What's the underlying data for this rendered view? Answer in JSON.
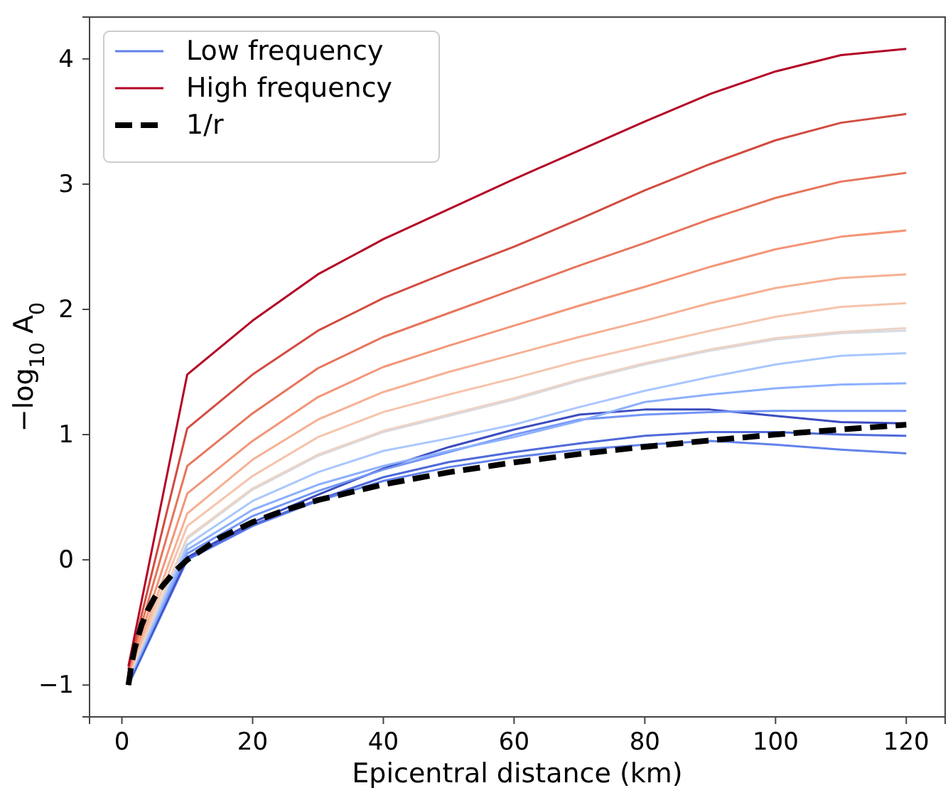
{
  "chart_data": {
    "type": "line",
    "xlabel": "Epicentral distance (km)",
    "ylabel": "−log$_{10}$ A$_{0}$",
    "x": [
      1,
      10,
      20,
      30,
      40,
      50,
      60,
      70,
      80,
      90,
      100,
      110,
      120
    ],
    "xlim": [
      -4.95,
      125.95
    ],
    "ylim": [
      -1.254,
      4.334
    ],
    "xticks": [
      0,
      20,
      40,
      60,
      80,
      100,
      120
    ],
    "yticks": [
      {
        "value": -1,
        "label": "−1"
      },
      0,
      1,
      2,
      3,
      4
    ],
    "grid": false,
    "legend": "top left",
    "line_style": "solid",
    "marker": "none",
    "series": [
      {
        "name": "Low frequency",
        "color": "#6282ea",
        "values": [
          -1.0,
          0.0,
          0.27,
          0.47,
          0.63,
          0.74,
          0.82,
          0.88,
          0.92,
          0.95,
          0.92,
          0.88,
          0.85
        ]
      },
      {
        "color": "#4f69d9",
        "values": [
          -0.99,
          0.01,
          0.28,
          0.48,
          0.66,
          0.78,
          0.86,
          0.93,
          0.99,
          1.02,
          1.02,
          1.0,
          0.99
        ]
      },
      {
        "color": "#3b4cc0",
        "values": [
          -0.98,
          0.02,
          0.3,
          0.52,
          0.73,
          0.9,
          1.04,
          1.16,
          1.2,
          1.2,
          1.15,
          1.1,
          1.09
        ]
      },
      {
        "color": "#7396f5",
        "values": [
          -0.97,
          0.05,
          0.35,
          0.55,
          0.72,
          0.86,
          1.0,
          1.12,
          1.16,
          1.18,
          1.19,
          1.19,
          1.19
        ]
      },
      {
        "color": "#8db0fe",
        "values": [
          -0.96,
          0.08,
          0.4,
          0.6,
          0.75,
          0.87,
          0.98,
          1.11,
          1.26,
          1.32,
          1.37,
          1.4,
          1.41
        ]
      },
      {
        "color": "#aac7fd",
        "values": [
          -0.95,
          0.12,
          0.47,
          0.7,
          0.87,
          0.97,
          1.08,
          1.22,
          1.35,
          1.46,
          1.56,
          1.63,
          1.65
        ]
      },
      {
        "color": "#d5dbe5",
        "values": [
          -0.94,
          0.17,
          0.56,
          0.83,
          1.02,
          1.15,
          1.28,
          1.43,
          1.56,
          1.67,
          1.76,
          1.81,
          1.83
        ]
      },
      {
        "color": "#ecd3c5",
        "values": [
          -0.93,
          0.18,
          0.57,
          0.84,
          1.03,
          1.16,
          1.29,
          1.44,
          1.57,
          1.68,
          1.77,
          1.82,
          1.85
        ]
      },
      {
        "color": "#f5c4ac",
        "values": [
          -0.92,
          0.27,
          0.67,
          0.98,
          1.18,
          1.32,
          1.45,
          1.59,
          1.71,
          1.83,
          1.94,
          2.02,
          2.05
        ]
      },
      {
        "color": "#f7b093",
        "values": [
          -0.91,
          0.37,
          0.8,
          1.12,
          1.34,
          1.5,
          1.64,
          1.78,
          1.91,
          2.05,
          2.17,
          2.25,
          2.28
        ]
      },
      {
        "color": "#f39577",
        "values": [
          -0.9,
          0.53,
          0.95,
          1.3,
          1.54,
          1.71,
          1.87,
          2.03,
          2.18,
          2.34,
          2.48,
          2.58,
          2.63
        ]
      },
      {
        "color": "#e7745b",
        "values": [
          -0.88,
          0.75,
          1.17,
          1.53,
          1.78,
          1.97,
          2.16,
          2.35,
          2.53,
          2.72,
          2.89,
          3.02,
          3.09
        ]
      },
      {
        "color": "#d24b40",
        "values": [
          -0.87,
          1.05,
          1.48,
          1.83,
          2.09,
          2.3,
          2.5,
          2.72,
          2.95,
          3.16,
          3.35,
          3.49,
          3.56
        ]
      },
      {
        "name": "High frequency",
        "color": "#b40426",
        "values": [
          -0.85,
          1.48,
          1.91,
          2.28,
          2.56,
          2.8,
          3.04,
          3.27,
          3.5,
          3.72,
          3.9,
          4.03,
          4.08
        ]
      },
      {
        "name": "1/r",
        "color": "#000000",
        "line_style": "dashed",
        "x": [
          1,
          1.5,
          2,
          3,
          4,
          5,
          6,
          8,
          10,
          15,
          20,
          25,
          30,
          40,
          50,
          60,
          70,
          80,
          90,
          100,
          110,
          120
        ],
        "values": [
          -1,
          -0.824,
          -0.699,
          -0.523,
          -0.398,
          -0.301,
          -0.222,
          -0.097,
          0,
          0.176,
          0.301,
          0.398,
          0.477,
          0.602,
          0.699,
          0.778,
          0.845,
          0.903,
          0.954,
          1,
          1.041,
          1.079
        ]
      }
    ]
  }
}
